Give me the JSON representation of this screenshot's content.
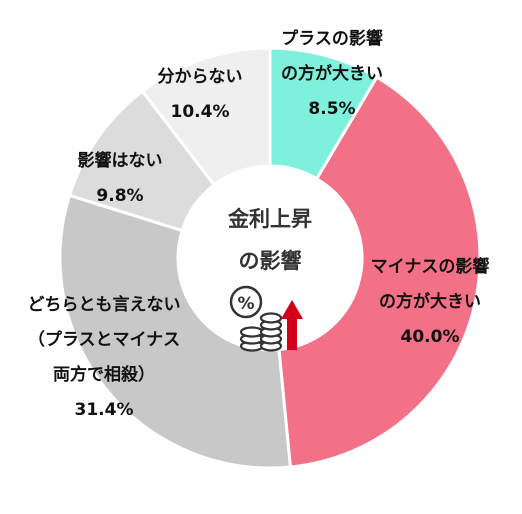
{
  "chart_data": {
    "type": "donut",
    "center_label": [
      "金利上昇",
      "の影響"
    ],
    "slices": [
      {
        "label": [
          "プラスの影響",
          "の方が大きい"
        ],
        "value": 8.5,
        "value_text": "8.5%",
        "color": "#7ef0dc"
      },
      {
        "label": [
          "マイナスの影響",
          "の方が大きい"
        ],
        "value": 40.0,
        "value_text": "40.0%",
        "color": "#f27186"
      },
      {
        "label": [
          "どちらとも言えない",
          "（プラスとマイナス",
          "両方で相殺）"
        ],
        "value": 31.4,
        "value_text": "31.4%",
        "color": "#c8c8c8"
      },
      {
        "label": [
          "影響はない"
        ],
        "value": 9.8,
        "value_text": "9.8%",
        "color": "#dcdcdc"
      },
      {
        "label": [
          "分からない"
        ],
        "value": 10.4,
        "value_text": "10.4%",
        "color": "#efefef"
      }
    ],
    "icon": "percent-coins-up-arrow-icon"
  }
}
